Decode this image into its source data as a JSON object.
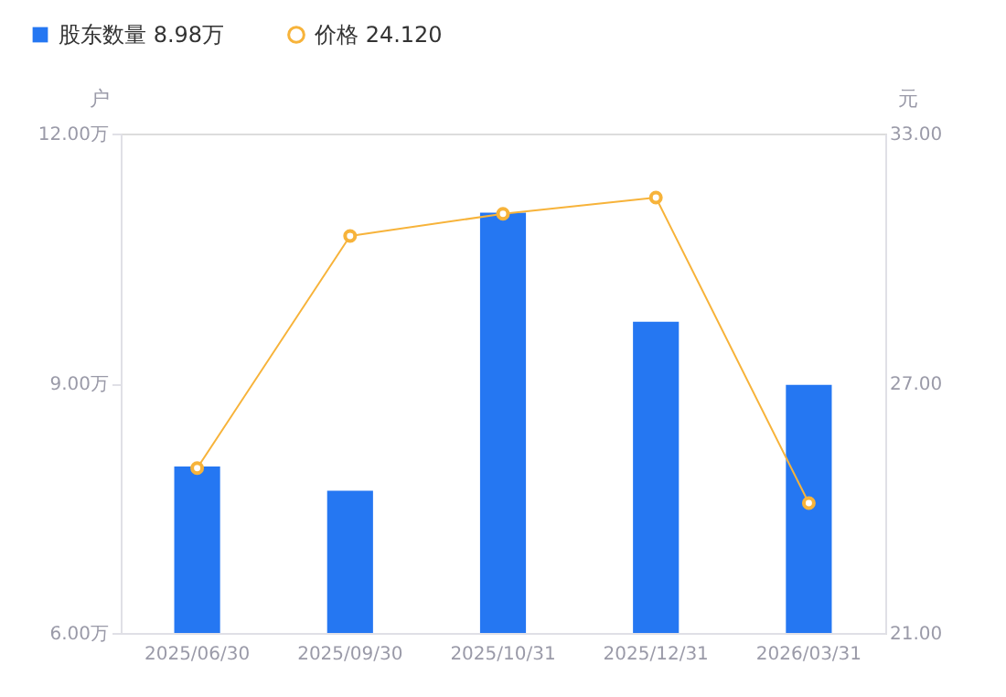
{
  "chart_data": {
    "type": "bar",
    "categories": [
      "2025/06/30",
      "2025/09/30",
      "2025/10/31",
      "2025/12/31",
      "2026/03/31"
    ],
    "series": [
      {
        "name": "股东数量 8.98万",
        "color": "#2577f2",
        "values": [
          8.0,
          7.71,
          11.05,
          9.74,
          8.98
        ]
      },
      {
        "name": "价格 24.120",
        "type": "line",
        "axis": "y2",
        "color": "#f7b33a",
        "marker": "circle",
        "values": [
          24.96,
          30.54,
          31.07,
          31.46,
          24.12
        ]
      }
    ],
    "ylabel": "户",
    "y2label": "元",
    "ylim": [
      6,
      12
    ],
    "yticks": [
      {
        "value": 6,
        "label": "6.00万"
      },
      {
        "value": 9,
        "label": "9.00万"
      },
      {
        "value": 12,
        "label": "12.00万"
      }
    ],
    "y2lim": [
      21,
      33
    ],
    "y2ticks": [
      {
        "value": 21,
        "label": "21.00"
      },
      {
        "value": 27,
        "label": "27.00"
      },
      {
        "value": 33,
        "label": "33.00"
      }
    ],
    "grid": false,
    "legend": "top left"
  }
}
